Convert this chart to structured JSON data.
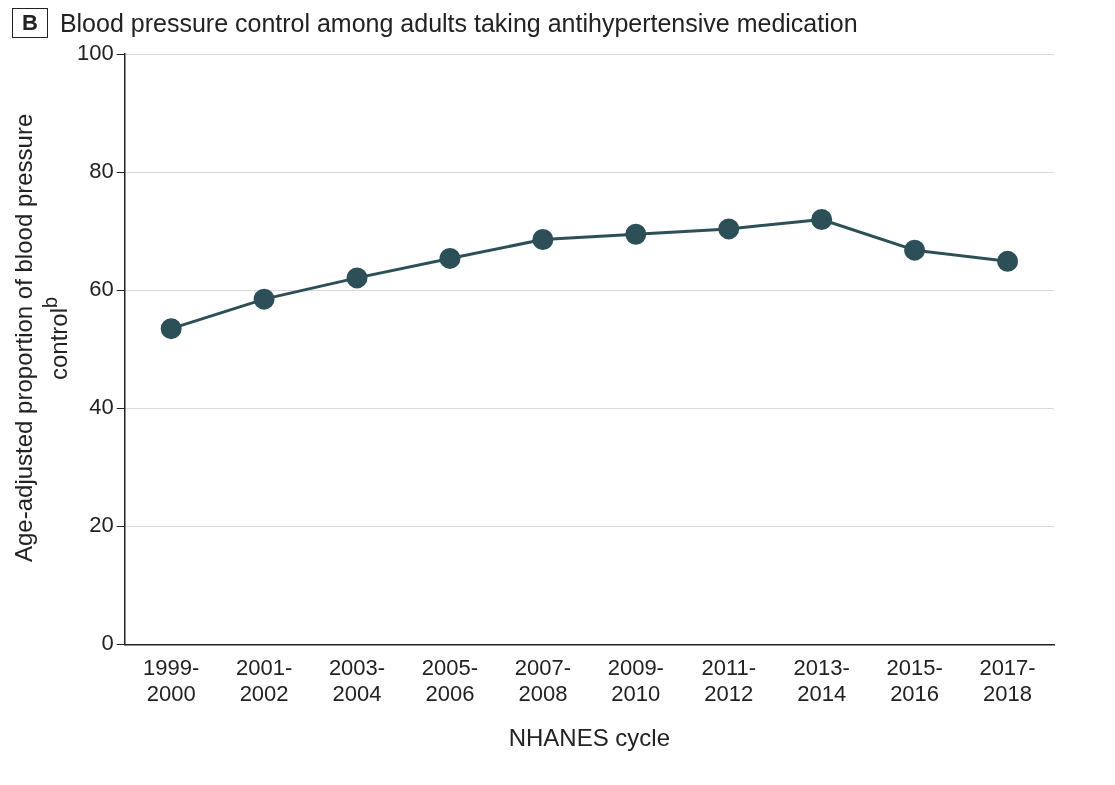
{
  "chart_data": {
    "type": "line",
    "title": "Blood pressure control among adults taking antihypertensive medication",
    "annotations": [
      "B"
    ],
    "xlabel": "NHANES cycle",
    "ylabel": "Age-adjusted proportion of blood pressure control$^{b}$",
    "categories": [
      "1999-2000",
      "2001-2002",
      "2003-2004",
      "2005-2006",
      "2007-2008",
      "2009-2010",
      "2011-2012",
      "2013-2014",
      "2015-2016",
      "2017-2018"
    ],
    "series": [
      {
        "color": "#2d4f57",
        "values": [
          53.5,
          58.5,
          62.1,
          65.4,
          68.6,
          69.5,
          70.4,
          72.0,
          66.8,
          64.9
        ]
      }
    ],
    "ylim": [
      0,
      100
    ],
    "yticks": [
      0,
      20,
      40,
      60,
      80,
      100
    ],
    "grid": "y",
    "legend": false,
    "marker": "circle",
    "line_style": "solid"
  }
}
